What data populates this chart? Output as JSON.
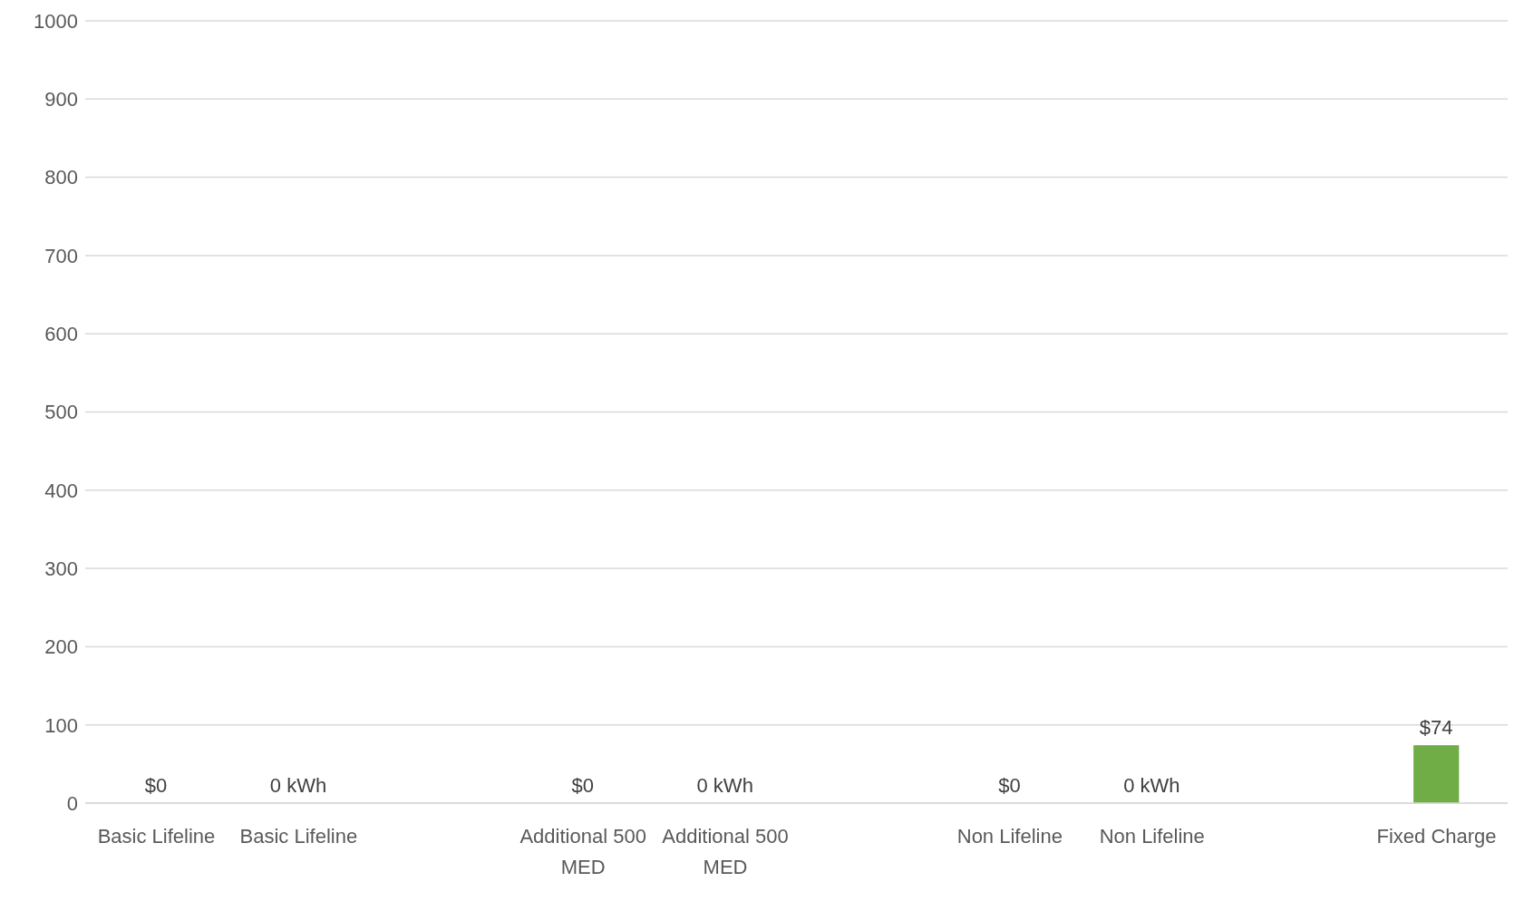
{
  "chart_data": {
    "type": "bar",
    "categories": [
      "Basic Lifeline",
      "Basic Lifeline",
      null,
      "Additional 500 MED",
      "Additional 500 MED",
      null,
      "Non Lifeline",
      "Non Lifeline",
      null,
      "Fixed Charge"
    ],
    "values": [
      0,
      0,
      null,
      0,
      0,
      null,
      0,
      0,
      null,
      74
    ],
    "value_labels": [
      "$0",
      "0 kWh",
      null,
      "$0",
      "0 kWh",
      null,
      "$0",
      "0 kWh",
      null,
      "$74"
    ],
    "color": "#70ad47",
    "ylim": [
      0,
      1000
    ],
    "yticks": [
      0,
      100,
      200,
      300,
      400,
      500,
      600,
      700,
      800,
      900,
      1000
    ],
    "grid": "y",
    "legend": false
  }
}
